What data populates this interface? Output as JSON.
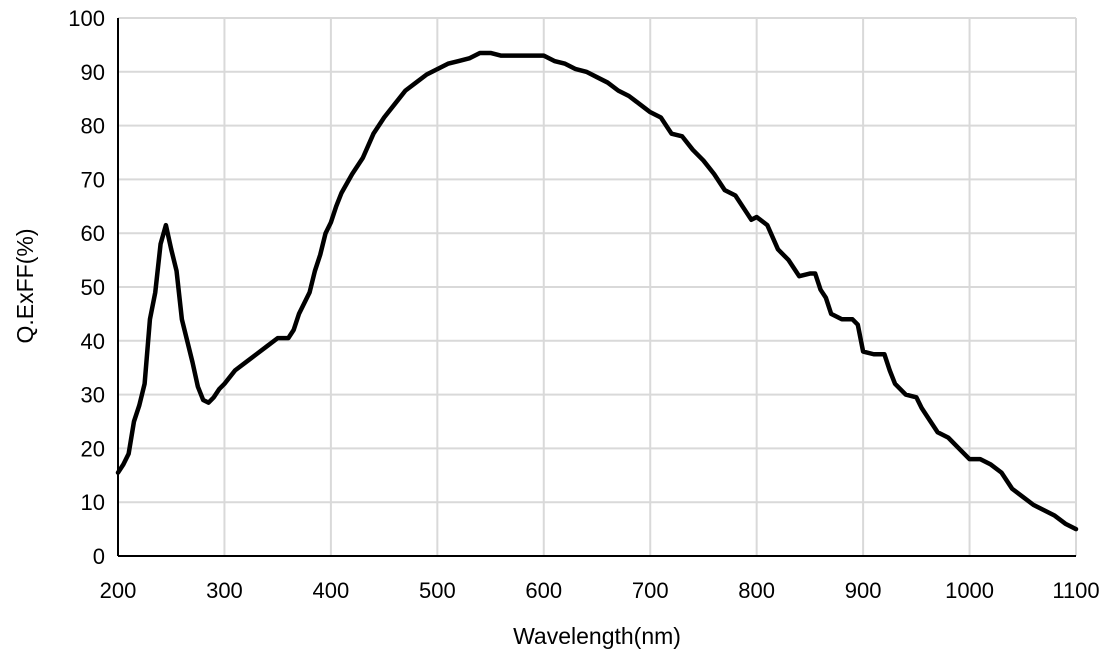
{
  "chart_data": {
    "type": "line",
    "title": "",
    "xlabel": "Wavelength(nm)",
    "ylabel": "Q.ExFF(%)",
    "xlim": [
      200,
      1100
    ],
    "ylim": [
      0,
      100
    ],
    "xticks": [
      200,
      300,
      400,
      500,
      600,
      700,
      800,
      900,
      1000,
      1100
    ],
    "yticks": [
      0,
      10,
      20,
      30,
      40,
      50,
      60,
      70,
      80,
      90,
      100
    ],
    "grid": true,
    "legend": "none",
    "line_color": "#000000",
    "grid_color": "#d9d9d9",
    "series": [
      {
        "x": [
          200,
          205,
          210,
          215,
          220,
          225,
          230,
          235,
          240,
          245,
          250,
          255,
          260,
          265,
          270,
          275,
          280,
          285,
          290,
          295,
          300,
          310,
          320,
          330,
          340,
          350,
          360,
          365,
          370,
          375,
          380,
          385,
          390,
          395,
          400,
          405,
          410,
          420,
          430,
          440,
          450,
          460,
          470,
          480,
          490,
          500,
          510,
          520,
          530,
          540,
          550,
          560,
          570,
          580,
          590,
          600,
          610,
          620,
          630,
          640,
          650,
          660,
          670,
          680,
          690,
          700,
          710,
          720,
          730,
          740,
          750,
          760,
          770,
          780,
          790,
          795,
          800,
          810,
          820,
          830,
          840,
          850,
          855,
          860,
          865,
          870,
          880,
          890,
          895,
          900,
          910,
          920,
          925,
          930,
          940,
          950,
          955,
          960,
          970,
          980,
          990,
          1000,
          1010,
          1020,
          1030,
          1040,
          1050,
          1060,
          1070,
          1080,
          1090,
          1100
        ],
        "y": [
          15.5,
          17,
          19,
          25,
          28,
          32,
          44,
          49,
          58,
          61.5,
          57,
          53,
          44,
          40,
          36,
          31.5,
          29,
          28.5,
          29.5,
          31,
          32,
          34.5,
          36,
          37.5,
          39,
          40.5,
          40.5,
          42,
          45,
          47,
          49,
          53,
          56,
          60,
          62,
          65,
          67.5,
          71,
          74,
          78.5,
          81.5,
          84,
          86.5,
          88,
          89.5,
          90.5,
          91.5,
          92,
          92.5,
          93.5,
          93.5,
          93,
          93,
          93,
          93,
          93,
          92,
          91.5,
          90.5,
          90,
          89,
          88,
          86.5,
          85.5,
          84,
          82.5,
          81.5,
          78.5,
          78,
          75.5,
          73.5,
          71,
          68,
          67,
          64,
          62.5,
          63,
          61.5,
          57,
          55,
          52,
          52.5,
          52.5,
          49.5,
          48,
          45,
          44,
          44,
          43,
          38,
          37.5,
          37.5,
          34.5,
          32,
          30,
          29.5,
          27.5,
          26,
          23,
          22,
          20,
          18,
          18,
          17,
          15.5,
          12.5,
          11,
          9.5,
          8.5,
          7.5,
          6,
          5
        ]
      }
    ]
  }
}
